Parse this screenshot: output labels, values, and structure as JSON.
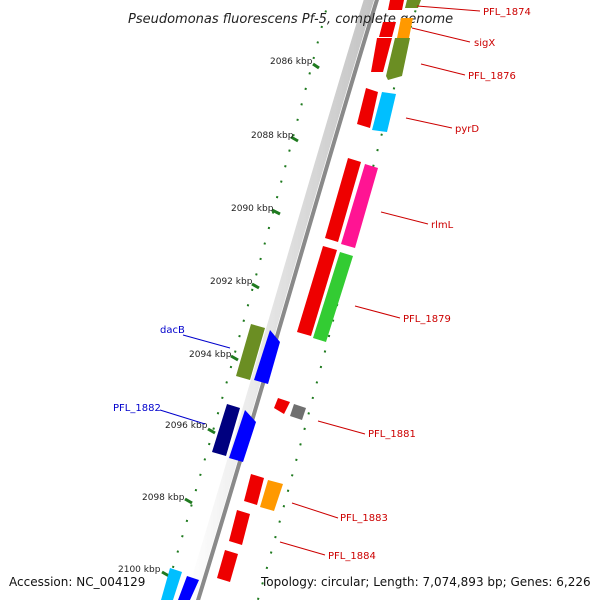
{
  "title": "Pseudomonas fluorescens Pf-5, complete genome",
  "accession_text": "Accession: NC_004129",
  "summary_text": "Topology: circular; Length: 7,074,893 bp; Genes: 6,226",
  "ticks": [
    "2086 kbp",
    "2088 kbp",
    "2090 kbp",
    "2092 kbp",
    "2094 kbp",
    "2096 kbp",
    "2098 kbp",
    "2100 kbp"
  ],
  "labels": [
    {
      "text": "PFL_1874",
      "color": "#cc0000",
      "side": "right"
    },
    {
      "text": "sigX",
      "color": "#cc0000",
      "side": "right"
    },
    {
      "text": "PFL_1876",
      "color": "#cc0000",
      "side": "right"
    },
    {
      "text": "pyrD",
      "color": "#cc0000",
      "side": "right"
    },
    {
      "text": "rlmL",
      "color": "#cc0000",
      "side": "right"
    },
    {
      "text": "PFL_1879",
      "color": "#cc0000",
      "side": "right"
    },
    {
      "text": "dacB",
      "color": "#0000cc",
      "side": "left"
    },
    {
      "text": "PFL_1882",
      "color": "#0000cc",
      "side": "left"
    },
    {
      "text": "PFL_1881",
      "color": "#cc0000",
      "side": "right"
    },
    {
      "text": "PFL_1883",
      "color": "#cc0000",
      "side": "right"
    },
    {
      "text": "PFL_1884",
      "color": "#cc0000",
      "side": "right"
    }
  ],
  "colors": {
    "backbone": "#8a8a8a",
    "tick": "#1f7a1f",
    "red": "#ee0000",
    "olive": "#6b8e23",
    "orange": "#ff9900",
    "cyan": "#00bfff",
    "magenta": "#ff1493",
    "green": "#33cc33",
    "blue": "#0000ff",
    "navy": "#00007f",
    "gray": "#707070"
  }
}
